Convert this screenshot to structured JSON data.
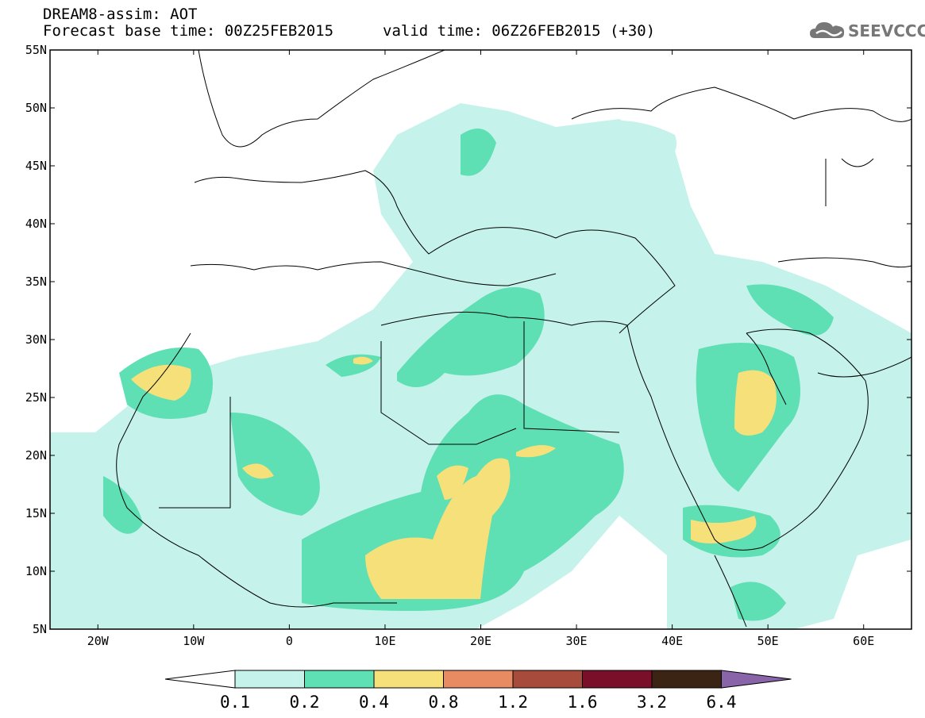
{
  "header": {
    "line1": "DREAM8-assim: AOT",
    "line2": "Forecast base time: 00Z25FEB2015",
    "line2b": "valid time: 06Z26FEB2015 (+30)"
  },
  "logo": {
    "text": "SEEVCCC",
    "icon": "cloud-icon",
    "color": "#777777"
  },
  "map": {
    "lon_range": [
      -25,
      65
    ],
    "lat_range": [
      5,
      55
    ],
    "lat_ticks": [
      "55N",
      "50N",
      "45N",
      "40N",
      "35N",
      "30N",
      "25N",
      "20N",
      "15N",
      "10N",
      "5N"
    ],
    "lon_ticks": [
      "20W",
      "10W",
      "0",
      "10E",
      "20E",
      "30E",
      "40E",
      "50E",
      "60E"
    ],
    "ocean_color": "#ffffff",
    "border_color": "#000000"
  },
  "colorbar": {
    "labels": [
      "0.1",
      "0.2",
      "0.4",
      "0.8",
      "1.2",
      "1.6",
      "3.2",
      "6.4"
    ],
    "colors": [
      "#ffffff",
      "#c5f2ea",
      "#5edfb4",
      "#f5e07a",
      "#e98b62",
      "#a74b3c",
      "#7a0f2a",
      "#3b2414",
      "#8a64a8"
    ]
  }
}
